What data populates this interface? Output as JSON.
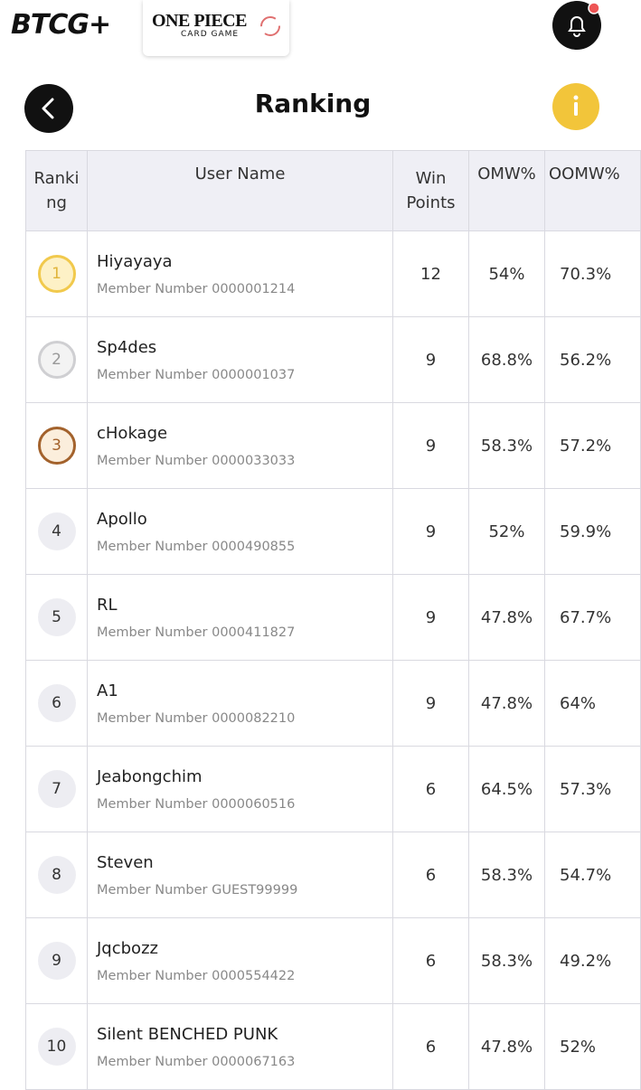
{
  "header": {
    "logo": "BTCG+",
    "game_logo": {
      "title": "ONE PIECE",
      "subtitle": "CARD GAME"
    }
  },
  "page_title": "Ranking",
  "table": {
    "columns": [
      "Ranking",
      "User Name",
      "Win Points",
      "OMW%",
      "OOMW%"
    ],
    "rows": [
      {
        "rank": 1,
        "name": "Hiyayaya",
        "member": "Member Number 0000001214",
        "win_points": 12,
        "omw": "54%",
        "oomw": "70.3%"
      },
      {
        "rank": 2,
        "name": "Sp4des",
        "member": "Member Number 0000001037",
        "win_points": 9,
        "omw": "68.8%",
        "oomw": "56.2%"
      },
      {
        "rank": 3,
        "name": "cHokage",
        "member": "Member Number 0000033033",
        "win_points": 9,
        "omw": "58.3%",
        "oomw": "57.2%"
      },
      {
        "rank": 4,
        "name": "Apollo",
        "member": "Member Number 0000490855",
        "win_points": 9,
        "omw": "52%",
        "oomw": "59.9%"
      },
      {
        "rank": 5,
        "name": "RL",
        "member": "Member Number 0000411827",
        "win_points": 9,
        "omw": "47.8%",
        "oomw": "67.7%"
      },
      {
        "rank": 6,
        "name": "A1",
        "member": "Member Number 0000082210",
        "win_points": 9,
        "omw": "47.8%",
        "oomw": "64%"
      },
      {
        "rank": 7,
        "name": "Jeabongchim",
        "member": "Member Number 0000060516",
        "win_points": 6,
        "omw": "64.5%",
        "oomw": "57.3%"
      },
      {
        "rank": 8,
        "name": "Steven",
        "member": "Member Number GUEST99999",
        "win_points": 6,
        "omw": "58.3%",
        "oomw": "54.7%"
      },
      {
        "rank": 9,
        "name": "Jqcbozz",
        "member": "Member Number 0000554422",
        "win_points": 6,
        "omw": "58.3%",
        "oomw": "49.2%"
      },
      {
        "rank": 10,
        "name": "Silent BENCHED PUNK",
        "member": "Member Number 0000067163",
        "win_points": 6,
        "omw": "47.8%",
        "oomw": "52%"
      }
    ]
  }
}
